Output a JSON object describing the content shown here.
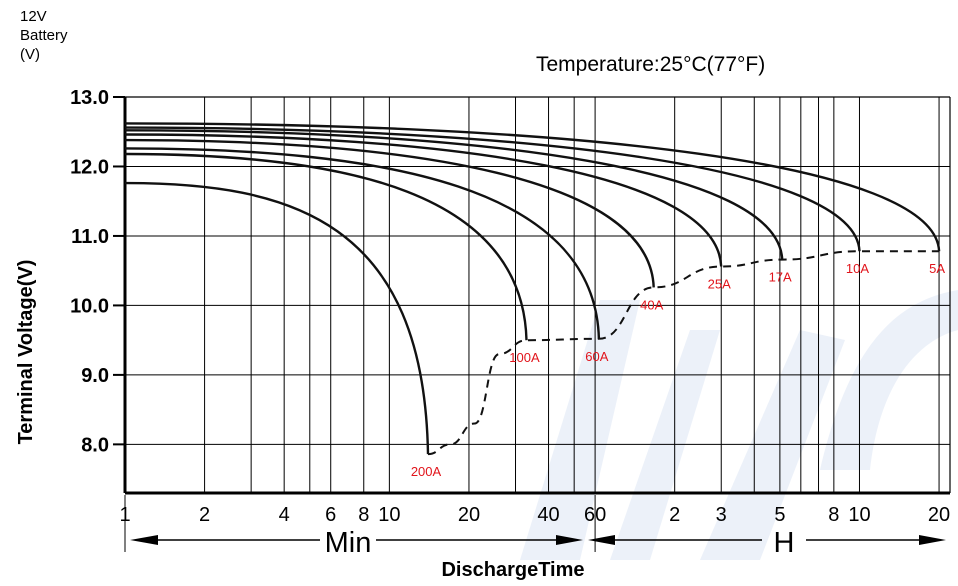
{
  "chart_data": {
    "type": "line",
    "title": "",
    "unit_label_lines": [
      "12V",
      "Battery",
      "(V)"
    ],
    "annotation": "Temperature:25°C(77°F)",
    "ylabel": "Terminal Voltage(V)",
    "xlabel": "DischargeTime",
    "ylim": [
      7.3,
      13.0
    ],
    "yticks": [
      13.0,
      12.0,
      11.0,
      10.0,
      9.0,
      8.0
    ],
    "ytick_labels": [
      "13.0",
      "12.0",
      "11.0",
      "10.0",
      "9.0",
      "8.0"
    ],
    "x_scale": "log",
    "x_unit": "min",
    "xlim": [
      1,
      1320
    ],
    "grid": true,
    "ticks_min": [
      {
        "label": "1",
        "value": 1
      },
      {
        "label": "2",
        "value": 2
      },
      {
        "label": "4",
        "value": 4
      },
      {
        "label": "6",
        "value": 6
      },
      {
        "label": "8",
        "value": 8
      },
      {
        "label": "10",
        "value": 10
      },
      {
        "label": "20",
        "value": 20
      },
      {
        "label": "40",
        "value": 40
      },
      {
        "label": "60",
        "value": 60
      }
    ],
    "ticks_hour": [
      {
        "label": "2",
        "value": 120
      },
      {
        "label": "3",
        "value": 180
      },
      {
        "label": "5",
        "value": 300
      },
      {
        "label": "8",
        "value": 480
      },
      {
        "label": "10",
        "value": 600
      },
      {
        "label": "20",
        "value": 1200
      }
    ],
    "extra_gridlines_min": [
      3,
      5,
      30,
      50,
      240,
      360,
      420
    ],
    "section_labels": {
      "min": "Min",
      "hour": "H"
    },
    "series": [
      {
        "name": "200A",
        "start_v": 11.76,
        "end_x": 14,
        "end_v": 7.86
      },
      {
        "name": "100A",
        "start_v": 12.18,
        "end_x": 33,
        "end_v": 9.5
      },
      {
        "name": "60A",
        "start_v": 12.26,
        "end_x": 62,
        "end_v": 9.52
      },
      {
        "name": "40A",
        "start_v": 12.38,
        "end_x": 100,
        "end_v": 10.26
      },
      {
        "name": "25A",
        "start_v": 12.46,
        "end_x": 180,
        "end_v": 10.56
      },
      {
        "name": "17A",
        "start_v": 12.52,
        "end_x": 306,
        "end_v": 10.66
      },
      {
        "name": "10A",
        "start_v": 12.56,
        "end_x": 600,
        "end_v": 10.78
      },
      {
        "name": "5A",
        "start_v": 12.62,
        "end_x": 1200,
        "end_v": 10.78
      }
    ],
    "cutoff_curve": [
      {
        "x": 14,
        "v": 7.86
      },
      {
        "x": 17,
        "v": 8.0
      },
      {
        "x": 21,
        "v": 8.3
      },
      {
        "x": 26,
        "v": 9.3
      },
      {
        "x": 33,
        "v": 9.5
      },
      {
        "x": 62,
        "v": 9.52
      },
      {
        "x": 100,
        "v": 10.26
      },
      {
        "x": 180,
        "v": 10.56
      },
      {
        "x": 306,
        "v": 10.66
      },
      {
        "x": 600,
        "v": 10.78
      },
      {
        "x": 1200,
        "v": 10.78
      }
    ],
    "colors": {
      "curve": "#111111",
      "label": "#e1141b",
      "grid": "#000000"
    }
  }
}
